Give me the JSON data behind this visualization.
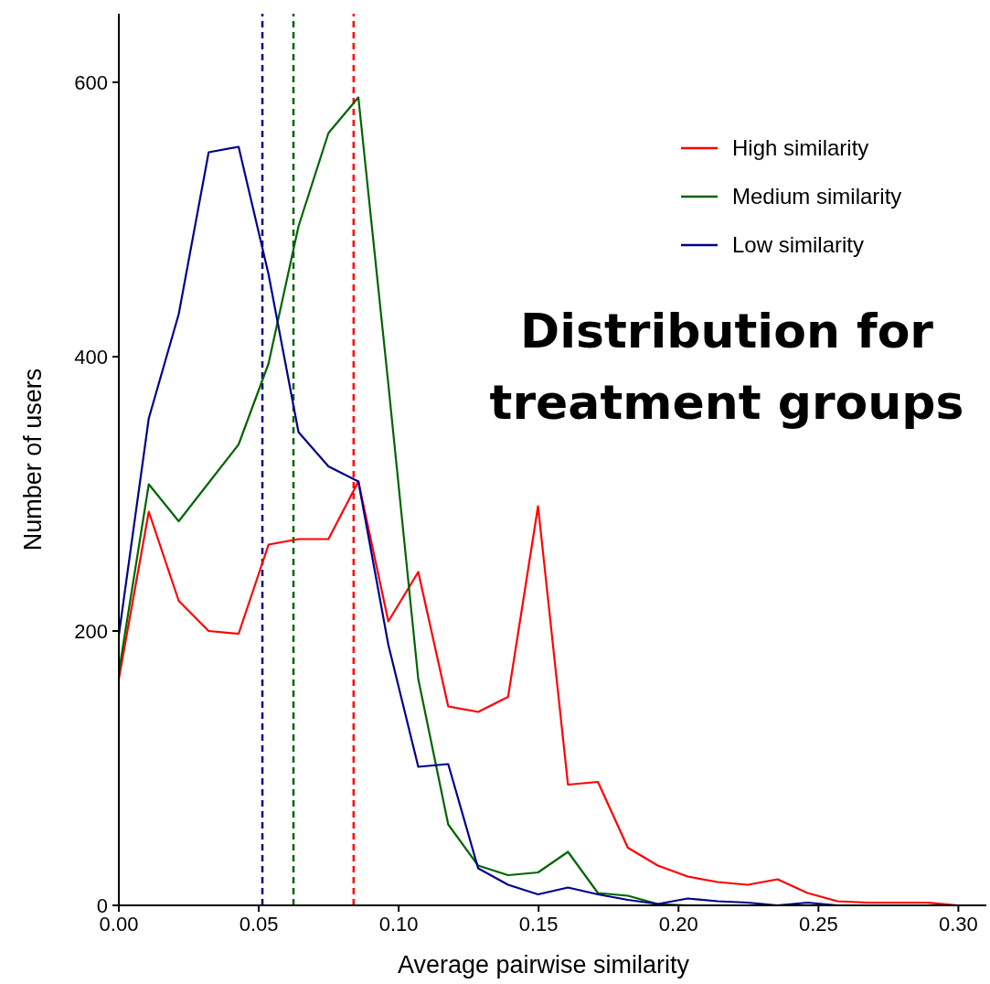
{
  "chart_data": {
    "type": "line",
    "title": "Distribution for treatment groups",
    "xlabel": "Average pairwise similarity",
    "ylabel": "Number of users",
    "x": [
      0,
      0.0107,
      0.0214,
      0.0321,
      0.0428,
      0.0535,
      0.0642,
      0.0749,
      0.0856,
      0.0963,
      0.107,
      0.1177,
      0.1284,
      0.1391,
      0.1498,
      0.1605,
      0.1712,
      0.1819,
      0.1926,
      0.2033,
      0.214,
      0.2247,
      0.2354,
      0.2461,
      0.2568,
      0.2675,
      0.2782,
      0.2889,
      0.2996
    ],
    "series": [
      {
        "name": "High similarity",
        "color": "#ff0000",
        "values": [
          165,
          287,
          222,
          200,
          198,
          263,
          267,
          267,
          309,
          207,
          243,
          145,
          141,
          152,
          291,
          88,
          90,
          42,
          29,
          21,
          17,
          15,
          19,
          9,
          3,
          2,
          2,
          2,
          0
        ]
      },
      {
        "name": "Medium similarity",
        "color": "#006400",
        "values": [
          170,
          307,
          280,
          308,
          336,
          395,
          495,
          563,
          589,
          380,
          165,
          59,
          29,
          22,
          24,
          39,
          9,
          7,
          1,
          0,
          0,
          null,
          null,
          null,
          null,
          null,
          null,
          null,
          null
        ]
      },
      {
        "name": "Low similarity",
        "color": "#00008b",
        "values": [
          197,
          355,
          431,
          549,
          553,
          460,
          345,
          320,
          309,
          190,
          101,
          103,
          27,
          15,
          8,
          13,
          8,
          4,
          1,
          5,
          3,
          2,
          0,
          2,
          0,
          0,
          null,
          null,
          null
        ]
      }
    ],
    "ref_lines": [
      {
        "axis": "x",
        "value": 0.0839,
        "color": "#ff0000",
        "line_style": "dashed"
      },
      {
        "axis": "x",
        "value": 0.0624,
        "color": "#006400",
        "line_style": "dashed"
      },
      {
        "axis": "x",
        "value": 0.0513,
        "color": "#00008b",
        "line_style": "dashed"
      }
    ],
    "xlim": [
      0,
      0.31
    ],
    "xticks": [
      {
        "value": 0,
        "label": "0.00"
      },
      {
        "value": 0.05,
        "label": "0.05"
      },
      {
        "value": 0.1,
        "label": "0.10"
      },
      {
        "value": 0.15,
        "label": "0.15"
      },
      {
        "value": 0.2,
        "label": "0.20"
      },
      {
        "value": 0.25,
        "label": "0.25"
      },
      {
        "value": 0.3,
        "label": "0.30"
      }
    ],
    "ylim": [
      0,
      650
    ],
    "yticks": [
      0,
      200,
      400,
      600
    ],
    "grid": false,
    "legend": "top right",
    "marker": "none",
    "line_style": "solid"
  }
}
